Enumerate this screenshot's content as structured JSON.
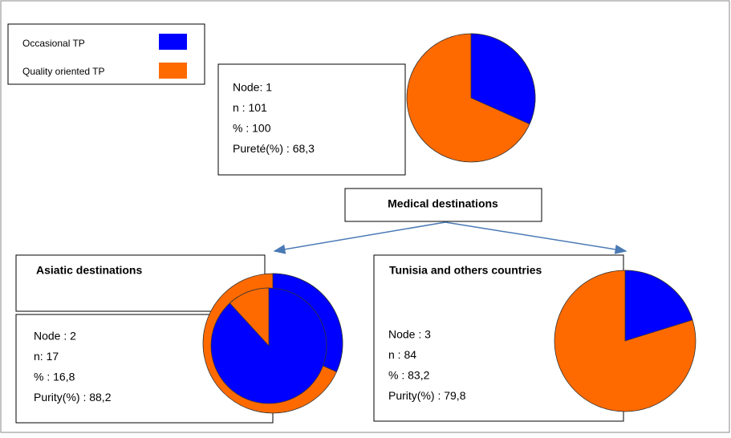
{
  "legend": [
    {
      "label": "Occasional TP"
    },
    {
      "label": "Quality oriented TP"
    }
  ],
  "nodes": [
    {
      "lines": [
        "Node: 1",
        "n : 101",
        "% : 100",
        "Pureté(%) : 68,3"
      ],
      "purity": 68.3
    },
    {
      "title": "Asiatic destinations",
      "lines": [
        "Node : 2",
        "n: 17",
        "% : 16,8",
        "Purity(%) : 88,2"
      ],
      "purity": 88.2
    },
    {
      "title": "Tunisia and others  countries",
      "lines": [
        "Node : 3",
        "n : 84",
        "% : 83,2",
        "Purity(%) : 79,8"
      ],
      "purity": 79.8
    }
  ],
  "split": {
    "label": "Medical destinations"
  }
}
